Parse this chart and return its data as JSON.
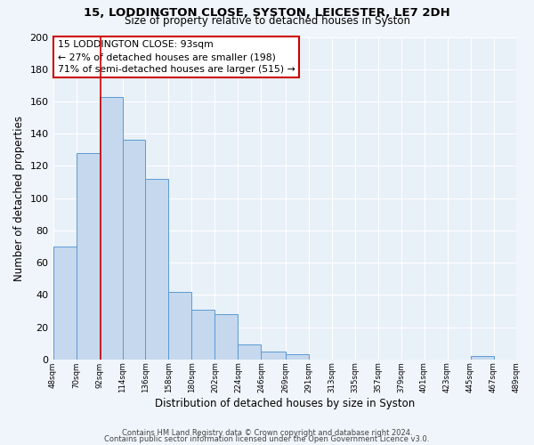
{
  "title": "15, LODDINGTON CLOSE, SYSTON, LEICESTER, LE7 2DH",
  "subtitle": "Size of property relative to detached houses in Syston",
  "xlabel": "Distribution of detached houses by size in Syston",
  "ylabel": "Number of detached properties",
  "bin_edges": [
    48,
    70,
    92,
    114,
    136,
    158,
    180,
    202,
    224,
    246,
    269,
    291,
    313,
    335,
    357,
    379,
    401,
    423,
    445,
    467,
    489
  ],
  "bar_heights": [
    70,
    128,
    163,
    136,
    112,
    42,
    31,
    28,
    9,
    5,
    3,
    0,
    0,
    0,
    0,
    0,
    0,
    0,
    2,
    0
  ],
  "bar_color": "#c5d8ed",
  "bar_edge_color": "#5b9bd5",
  "vline_x": 93,
  "vline_color": "#cc0000",
  "annotation_lines": [
    "15 LODDINGTON CLOSE: 93sqm",
    "← 27% of detached houses are smaller (198)",
    "71% of semi-detached houses are larger (515) →"
  ],
  "annotation_box_facecolor": "#ffffff",
  "annotation_box_edgecolor": "#cc0000",
  "tick_labels": [
    "48sqm",
    "70sqm",
    "92sqm",
    "114sqm",
    "136sqm",
    "158sqm",
    "180sqm",
    "202sqm",
    "224sqm",
    "246sqm",
    "269sqm",
    "291sqm",
    "313sqm",
    "335sqm",
    "357sqm",
    "379sqm",
    "401sqm",
    "423sqm",
    "445sqm",
    "467sqm",
    "489sqm"
  ],
  "ylim": [
    0,
    200
  ],
  "yticks": [
    0,
    20,
    40,
    60,
    80,
    100,
    120,
    140,
    160,
    180,
    200
  ],
  "bg_color": "#e8f0f8",
  "fig_bg_color": "#f0f5fb",
  "grid_color": "#ffffff",
  "footer1": "Contains HM Land Registry data © Crown copyright and database right 2024.",
  "footer2": "Contains public sector information licensed under the Open Government Licence v3.0."
}
